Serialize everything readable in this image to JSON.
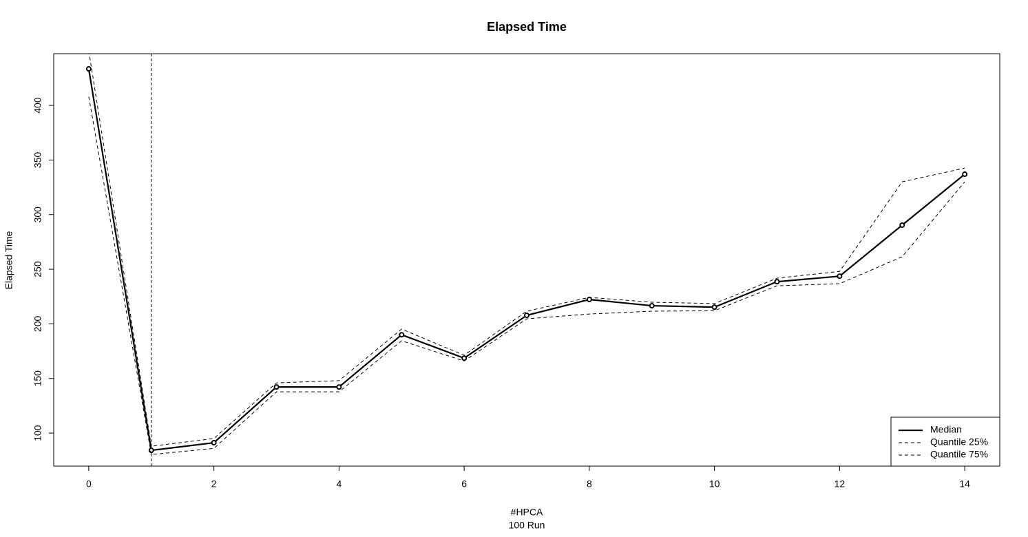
{
  "chart_data": {
    "type": "line",
    "title": "Elapsed Time",
    "x_label": "#HPCA",
    "x_sublabel": "100 Run",
    "y_label": "Elapsed Time",
    "x": [
      0,
      1,
      2,
      3,
      4,
      5,
      6,
      7,
      8,
      9,
      10,
      11,
      12,
      13,
      14
    ],
    "series": [
      {
        "name": "Median",
        "color": "#000000",
        "line_style": "solid",
        "markers": true,
        "values": [
          433.4,
          84.2,
          91.2,
          142.2,
          142.2,
          190,
          168.6,
          207.8,
          222.3,
          216.6,
          215.3,
          238.6,
          243.6,
          290.4,
          337
        ]
      },
      {
        "name": "Quantile 25%",
        "color": "#000000",
        "line_style": "dashed",
        "markers": false,
        "values": [
          408,
          80.4,
          86,
          137.8,
          137.8,
          184.5,
          166,
          204.6,
          209,
          211.6,
          212,
          234.8,
          236.8,
          261.4,
          330
        ]
      },
      {
        "name": "Quantile 75%",
        "color": "#000000",
        "line_style": "dashed",
        "markers": false,
        "values": [
          450,
          88,
          95,
          146,
          148,
          195.2,
          171.3,
          211.6,
          224.2,
          219.8,
          218.6,
          241.8,
          248,
          330,
          342.6
        ]
      }
    ],
    "vline": 1,
    "xlim": [
      -0.56,
      14.56
    ],
    "ylim": [
      69.8,
      447.3
    ],
    "xticks": [
      0,
      2,
      4,
      6,
      8,
      10,
      12,
      14
    ],
    "yticks": [
      100,
      150,
      200,
      250,
      300,
      350,
      400
    ],
    "legend": "bottom-right"
  }
}
